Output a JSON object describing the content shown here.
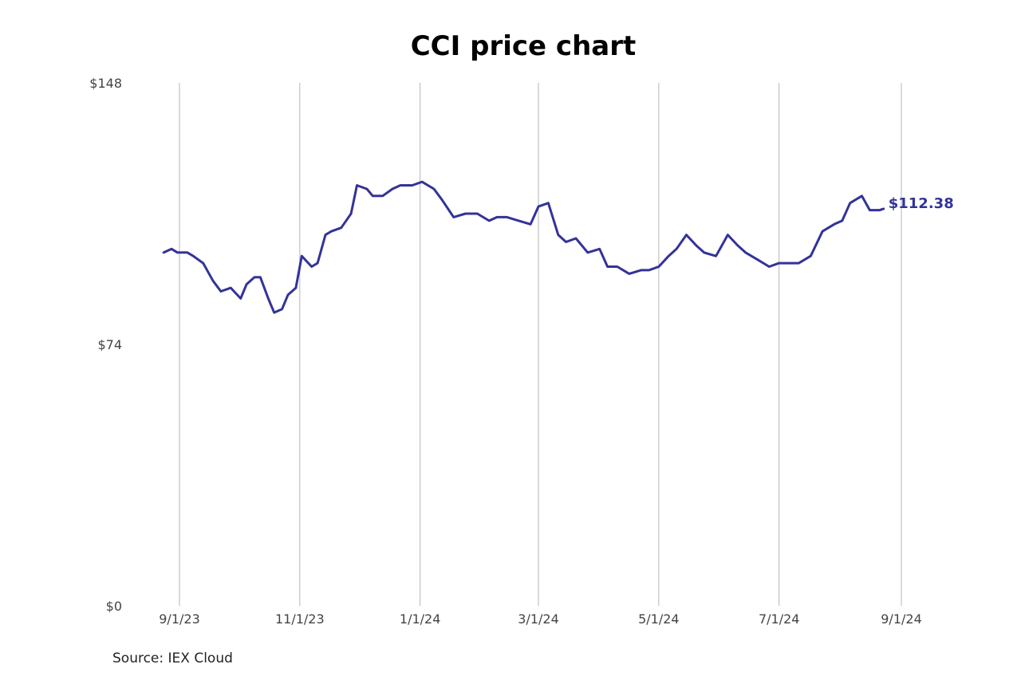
{
  "colors": {
    "line": "#333399",
    "grid": "#b5b5b5",
    "text": "#444444"
  },
  "source": "Source: IEX Cloud",
  "chart_data": {
    "type": "line",
    "title": "CCI price chart",
    "xlabel": "",
    "ylabel": "",
    "ylim": [
      0,
      148
    ],
    "yticks": [
      {
        "value": 0,
        "label": "$0"
      },
      {
        "value": 74,
        "label": "$74"
      },
      {
        "value": 148,
        "label": "$148"
      }
    ],
    "xlim": [
      "2023-08-24",
      "2024-09-01"
    ],
    "xticks": [
      {
        "date": "2023-09-01",
        "label": "9/1/23"
      },
      {
        "date": "2023-11-01",
        "label": "11/1/23"
      },
      {
        "date": "2024-01-01",
        "label": "1/1/24"
      },
      {
        "date": "2024-03-01",
        "label": "3/1/24"
      },
      {
        "date": "2024-05-01",
        "label": "5/1/24"
      },
      {
        "date": "2024-07-01",
        "label": "7/1/24"
      },
      {
        "date": "2024-09-01",
        "label": "9/1/24"
      }
    ],
    "grid": "vertical",
    "end_label": "$112.38",
    "series": [
      {
        "x": [
          "2023-08-24",
          "2023-08-28",
          "2023-08-31",
          "2023-09-05",
          "2023-09-08",
          "2023-09-13",
          "2023-09-18",
          "2023-09-22",
          "2023-09-27",
          "2023-10-02",
          "2023-10-05",
          "2023-10-09",
          "2023-10-12",
          "2023-10-16",
          "2023-10-19",
          "2023-10-23",
          "2023-10-26",
          "2023-10-30",
          "2023-11-02",
          "2023-11-07",
          "2023-11-10",
          "2023-11-14",
          "2023-11-17",
          "2023-11-22",
          "2023-11-27",
          "2023-11-30",
          "2023-12-05",
          "2023-12-08",
          "2023-12-13",
          "2023-12-18",
          "2023-12-22",
          "2023-12-28",
          "2024-01-02",
          "2024-01-08",
          "2024-01-12",
          "2024-01-18",
          "2024-01-24",
          "2024-01-30",
          "2024-02-05",
          "2024-02-09",
          "2024-02-14",
          "2024-02-20",
          "2024-02-26",
          "2024-03-01",
          "2024-03-06",
          "2024-03-11",
          "2024-03-15",
          "2024-03-20",
          "2024-03-26",
          "2024-04-01",
          "2024-04-05",
          "2024-04-10",
          "2024-04-16",
          "2024-04-22",
          "2024-04-26",
          "2024-05-01",
          "2024-05-06",
          "2024-05-10",
          "2024-05-15",
          "2024-05-20",
          "2024-05-24",
          "2024-05-30",
          "2024-06-05",
          "2024-06-10",
          "2024-06-14",
          "2024-06-20",
          "2024-06-26",
          "2024-07-01",
          "2024-07-05",
          "2024-07-11",
          "2024-07-17",
          "2024-07-23",
          "2024-07-29",
          "2024-08-02",
          "2024-08-06",
          "2024-08-12",
          "2024-08-16",
          "2024-08-21",
          "2024-08-23"
        ],
        "values": [
          100,
          101,
          100,
          100,
          99,
          97,
          92,
          89,
          90,
          87,
          91,
          93,
          93,
          87,
          83,
          84,
          88,
          90,
          99,
          96,
          97,
          105,
          106,
          107,
          111,
          119,
          118,
          116,
          116,
          118,
          119,
          119,
          120,
          118,
          115,
          110,
          111,
          111,
          109,
          110,
          110,
          109,
          108,
          113,
          114,
          105,
          103,
          104,
          100,
          101,
          96,
          96,
          94,
          95,
          95,
          96,
          99,
          101,
          105,
          102,
          100,
          99,
          105,
          102,
          100,
          98,
          96,
          97,
          97,
          97,
          99,
          106,
          108,
          109,
          114,
          116,
          112,
          112,
          112.38
        ]
      }
    ]
  }
}
